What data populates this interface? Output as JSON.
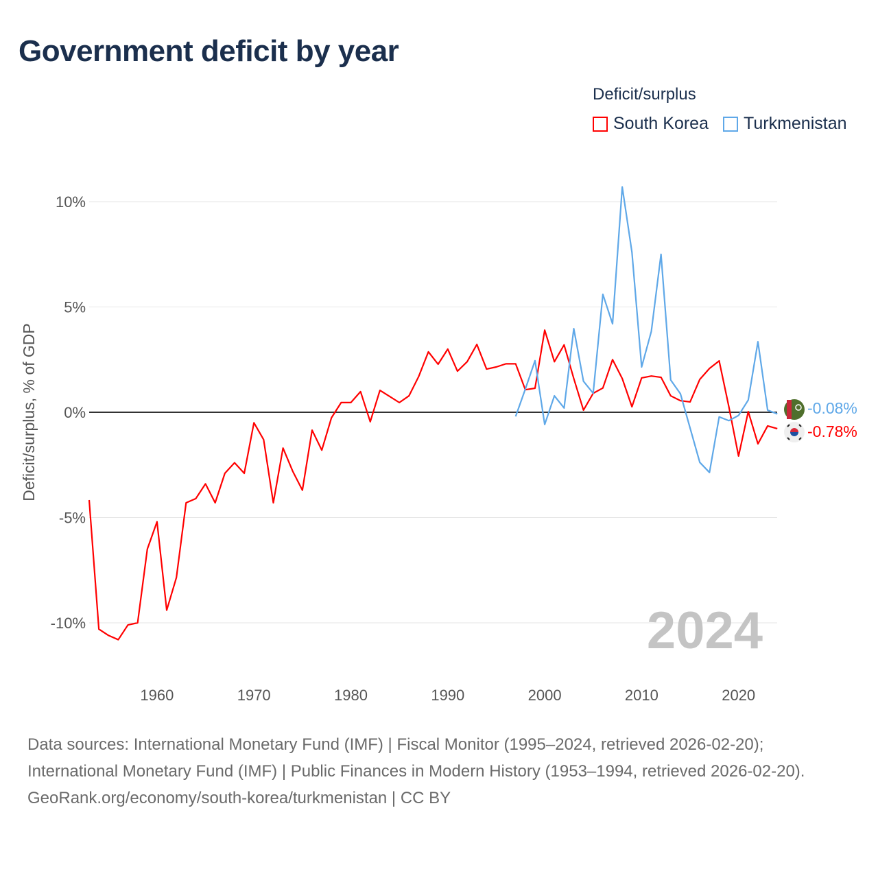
{
  "title": "Government deficit by year",
  "legend": {
    "title": "Deficit/surplus",
    "items": [
      {
        "label": "South Korea",
        "color": "#ff0000"
      },
      {
        "label": "Turkmenistan",
        "color": "#5fa8e8"
      }
    ]
  },
  "chart_data": {
    "type": "line",
    "title": "Government deficit by year",
    "xlabel": "",
    "ylabel": "Deficit/surplus, % of GDP",
    "xlim": [
      1953,
      2024
    ],
    "ylim": [
      -12.5,
      12
    ],
    "xticks": [
      1960,
      1970,
      1980,
      1990,
      2000,
      2010,
      2020
    ],
    "yticks": [
      {
        "v": 10,
        "label": "10%"
      },
      {
        "v": 5,
        "label": "5%"
      },
      {
        "v": 0,
        "label": "0%"
      },
      {
        "v": -5,
        "label": "-5%"
      },
      {
        "v": -10,
        "label": "-10%"
      }
    ],
    "grid": true,
    "legend_position": "top-right",
    "year_annotation": "2024",
    "series": [
      {
        "name": "South Korea",
        "color": "#ff0000",
        "end_label": "-0.78%",
        "start": 1953,
        "values": [
          -4.17,
          -10.3,
          -10.6,
          -10.8,
          -10.1,
          -10.0,
          -6.5,
          -5.2,
          -9.4,
          -7.85,
          -4.3,
          -4.1,
          -3.4,
          -4.3,
          -2.9,
          -2.4,
          -2.9,
          -0.5,
          -1.3,
          -4.3,
          -1.7,
          -2.8,
          -3.7,
          -0.85,
          -1.8,
          -0.26,
          0.46,
          0.46,
          0.98,
          -0.45,
          1.04,
          0.75,
          0.46,
          0.78,
          1.7,
          2.87,
          2.28,
          3.0,
          1.95,
          2.4,
          3.22,
          2.05,
          2.15,
          2.3,
          2.3,
          1.07,
          1.14,
          3.9,
          2.4,
          3.2,
          1.6,
          0.1,
          0.9,
          1.15,
          2.5,
          1.6,
          0.26,
          1.63,
          1.72,
          1.66,
          0.78,
          0.55,
          0.49,
          1.56,
          2.08,
          2.44,
          0.26,
          -2.08,
          0.03,
          -1.5,
          -0.65,
          -0.78
        ]
      },
      {
        "name": "Turkmenistan",
        "color": "#5fa8e8",
        "end_label": "-0.08%",
        "start": 1997,
        "values": [
          -0.2,
          1.1,
          2.45,
          -0.58,
          0.78,
          0.2,
          3.97,
          1.47,
          0.9,
          5.6,
          4.2,
          10.7,
          7.6,
          2.15,
          3.84,
          7.5,
          1.53,
          0.88,
          -0.75,
          -2.38,
          -2.86,
          -0.22,
          -0.4,
          -0.15,
          0.58,
          3.35,
          0.1,
          -0.08
        ]
      }
    ]
  },
  "footer": {
    "sources": "Data sources: International Monetary Fund (IMF) | Fiscal Monitor (1995–2024, retrieved 2026-02-20); International Monetary Fund (IMF) | Public Finances in Modern History (1953–1994, retrieved 2026-02-20).",
    "credit": "GeoRank.org/economy/south-korea/turkmenistan | CC BY"
  }
}
